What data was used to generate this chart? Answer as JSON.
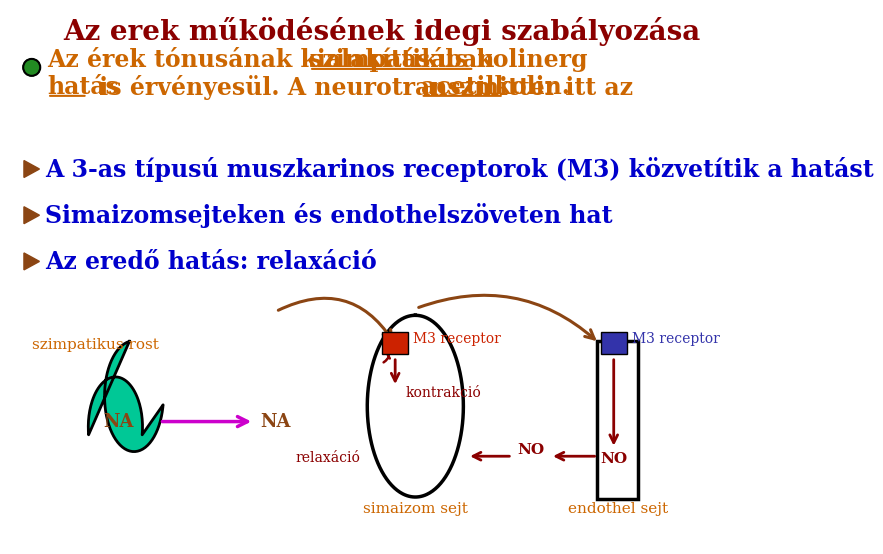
{
  "title": "Az erek működésének idegi szabályozása",
  "title_color": "#8B0000",
  "bg_color": "#FFFFFF",
  "bullet1_color": "#CC6600",
  "bullet_dot_color": "#228B22",
  "arrow_bullet_color": "#8B4513",
  "line2_text": "A 3-as típusú muszkarinos receptorok (M3) közvetítik a hatást",
  "line3_text": "Simaizomsejteken és endothelszöveten hat",
  "line4_text": "Az eredő hatás: relaxáció",
  "bullet_text_color": "#0000CC",
  "label_szimpatikus": "szimpatikus rost",
  "label_NA1": "NA",
  "label_NA2": "NA",
  "label_simaizom": "simaizom sejt",
  "label_endothel": "endothel sejt",
  "label_M3_1": "M3 receptor",
  "label_M3_2": "M3 receptor",
  "label_kontrakció": "kontrakció",
  "label_relaxáció": "relaxáció",
  "label_NO1": "NO",
  "label_NO2": "NO",
  "orange_label_color": "#CC6600",
  "dark_red_color": "#8B0000",
  "brown_color": "#8B4513",
  "magenta_color": "#CC00CC",
  "green_cell_color": "#00C896",
  "red_receptor_color": "#CC2200",
  "blue_receptor_color": "#3333AA"
}
